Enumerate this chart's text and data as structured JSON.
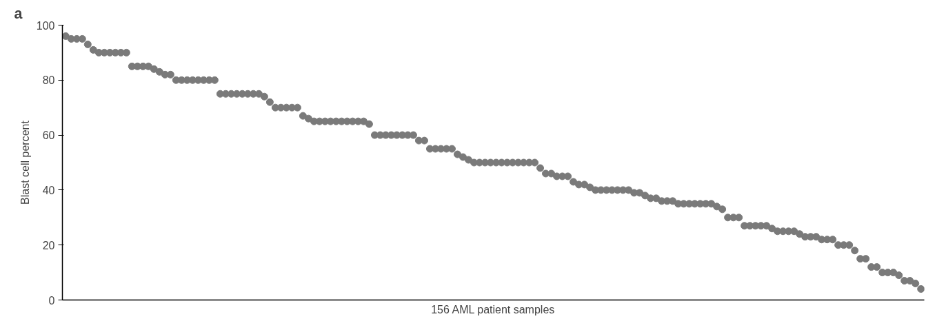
{
  "chart_data": {
    "type": "scatter",
    "title": "a",
    "xlabel": "156 AML patient samples",
    "ylabel": "Blast cell percent",
    "categories": [
      null,
      null,
      null,
      null,
      null,
      null,
      null,
      null,
      null,
      null,
      null,
      null,
      null,
      null,
      null,
      null,
      null,
      null,
      null,
      null,
      null,
      null,
      null,
      null,
      null,
      null,
      null,
      null,
      null,
      null,
      null,
      null,
      null,
      null,
      null,
      null,
      null,
      null,
      null,
      null,
      null,
      null,
      null,
      null,
      null,
      null,
      null,
      null,
      null,
      null,
      null,
      null,
      null,
      null,
      null,
      null,
      null,
      null,
      null,
      null,
      null,
      null,
      null,
      null,
      null,
      null,
      null,
      null,
      null,
      null,
      null,
      null,
      null,
      null,
      null,
      null,
      null,
      null,
      null,
      null,
      null,
      null,
      null,
      null,
      null,
      null,
      null,
      null,
      null,
      null,
      null,
      null,
      null,
      null,
      null,
      null,
      null,
      null,
      null,
      null,
      null,
      null,
      null,
      null,
      null,
      null,
      null,
      null,
      null,
      null,
      null,
      null,
      null,
      null,
      null,
      null,
      null,
      null,
      null,
      null,
      null,
      null,
      null,
      null,
      null,
      null,
      null,
      null,
      null,
      null,
      null,
      null,
      null,
      null,
      null,
      null,
      null,
      null,
      null,
      null,
      null,
      null,
      null,
      null,
      null,
      null,
      null,
      null,
      null,
      null,
      null,
      null,
      null,
      null,
      null,
      null
    ],
    "series": [
      {
        "color": "#7a7a7a",
        "values": [
          96,
          95,
          95,
          95,
          93,
          91,
          90,
          90,
          90,
          90,
          90,
          90,
          85,
          85,
          85,
          85,
          84,
          83,
          82,
          82,
          80,
          80,
          80,
          80,
          80,
          80,
          80,
          80,
          75,
          75,
          75,
          75,
          75,
          75,
          75,
          75,
          74,
          72,
          70,
          70,
          70,
          70,
          70,
          67,
          66,
          65,
          65,
          65,
          65,
          65,
          65,
          65,
          65,
          65,
          65,
          64,
          60,
          60,
          60,
          60,
          60,
          60,
          60,
          60,
          58,
          58,
          55,
          55,
          55,
          55,
          55,
          53,
          52,
          51,
          50,
          50,
          50,
          50,
          50,
          50,
          50,
          50,
          50,
          50,
          50,
          50,
          48,
          46,
          46,
          45,
          45,
          45,
          43,
          42,
          42,
          41,
          40,
          40,
          40,
          40,
          40,
          40,
          40,
          39,
          39,
          38,
          37,
          37,
          36,
          36,
          36,
          35,
          35,
          35,
          35,
          35,
          35,
          35,
          34,
          33,
          30,
          30,
          30,
          27,
          27,
          27,
          27,
          27,
          26,
          25,
          25,
          25,
          25,
          24,
          23,
          23,
          23,
          22,
          22,
          22,
          20,
          20,
          20,
          18,
          15,
          15,
          12,
          12,
          10,
          10,
          10,
          9,
          7,
          7,
          6,
          4
        ]
      }
    ],
    "ylim": [
      0,
      100
    ],
    "yticks": [
      0,
      20,
      40,
      60,
      80,
      100
    ],
    "marker": "circle",
    "grid": false,
    "tick_labels": "y"
  }
}
